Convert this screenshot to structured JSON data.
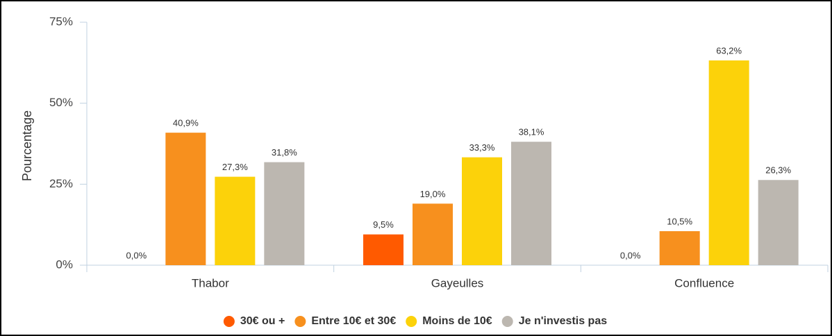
{
  "chart_data": {
    "type": "bar",
    "y_label": "Pourcentage",
    "categories": [
      "Thabor",
      "Gayeulles",
      "Confluence"
    ],
    "series": [
      {
        "name": "30€ ou +",
        "color": "#ff5a00",
        "values": [
          0,
          9.5,
          0
        ],
        "value_labels": [
          "0,0%",
          "9,5%",
          "0,0%"
        ]
      },
      {
        "name": "Entre 10€ et 30€",
        "color": "#f7901e",
        "values": [
          40.9,
          19.0,
          10.5
        ],
        "value_labels": [
          "40,9%",
          "19,0%",
          "10,5%"
        ]
      },
      {
        "name": "Moins de 10€",
        "color": "#fcd20a",
        "values": [
          27.3,
          33.3,
          63.2
        ],
        "value_labels": [
          "27,3%",
          "33,3%",
          "63,2%"
        ]
      },
      {
        "name": "Je n'investis pas",
        "color": "#bcb7b0",
        "values": [
          31.8,
          38.1,
          26.3
        ],
        "value_labels": [
          "31,8%",
          "38,1%",
          "26,3%"
        ]
      }
    ],
    "ylim": [
      0,
      75
    ],
    "yticks": [
      {
        "value": 0,
        "label": "0%"
      },
      {
        "value": 25,
        "label": "25%"
      },
      {
        "value": 50,
        "label": "50%"
      },
      {
        "value": 75,
        "label": "75%"
      }
    ],
    "legend": "bottom"
  }
}
